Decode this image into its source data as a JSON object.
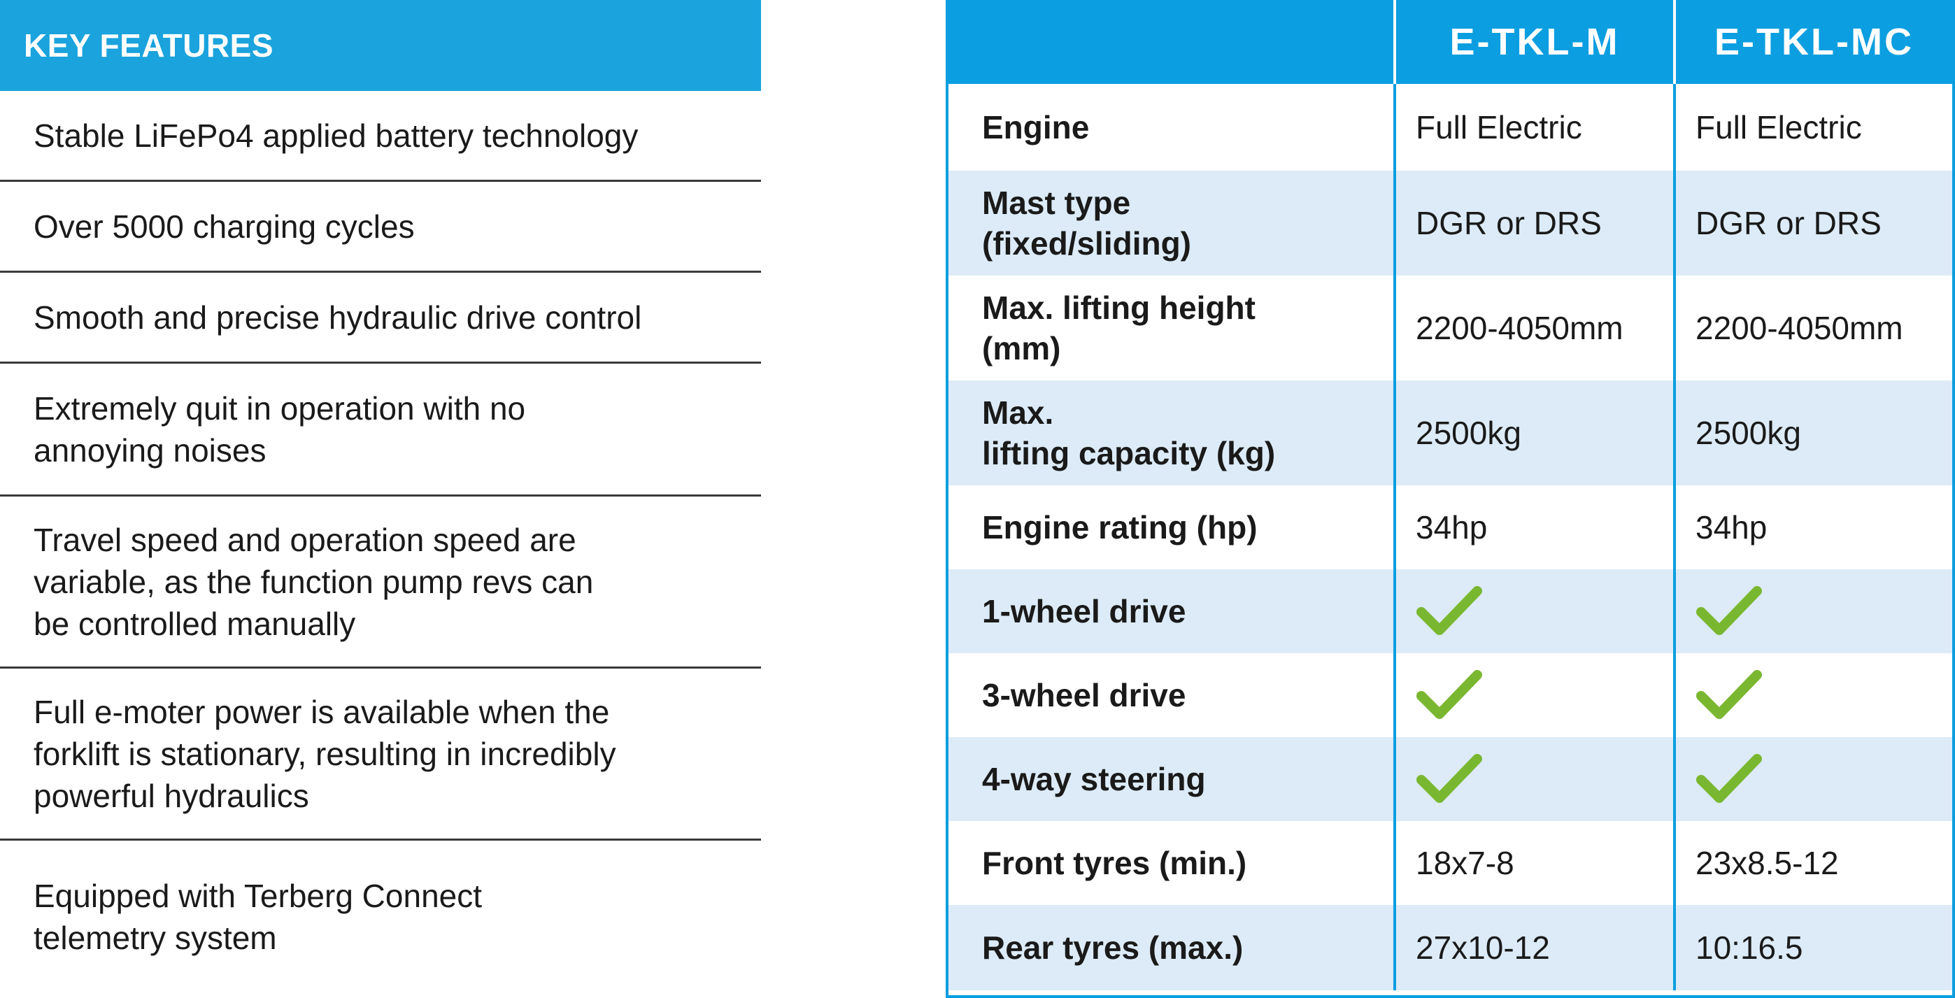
{
  "features": {
    "title": "KEY FEATURES",
    "items": [
      [
        "Stable LiFePo4 applied battery technology"
      ],
      [
        "Over 5000 charging cycles"
      ],
      [
        "Smooth and precise hydraulic drive control"
      ],
      [
        "Extremely quit in operation with no",
        "annoying noises"
      ],
      [
        "Travel speed and operation speed are",
        "variable, as the function pump revs can",
        "be controlled manually"
      ],
      [
        "Full e-moter power is available when the",
        "forklift is stationary, resulting in incredibly",
        "powerful hydraulics"
      ],
      [
        "Equipped with Terberg Connect",
        "telemetry system"
      ]
    ]
  },
  "spec": {
    "columns": [
      "",
      "E-TKL-M",
      "E-TKL-MC"
    ],
    "rows": [
      {
        "label": [
          "Engine"
        ],
        "m": "Full Electric",
        "mc": "Full Electric"
      },
      {
        "label": [
          "Mast type",
          "(fixed/sliding)"
        ],
        "m": "DGR or DRS",
        "mc": "DGR or DRS"
      },
      {
        "label": [
          "Max. lifting height",
          "(mm)"
        ],
        "m": "2200-4050mm",
        "mc": "2200-4050mm"
      },
      {
        "label": [
          "Max.",
          "lifting capacity (kg)"
        ],
        "m": "2500kg",
        "mc": "2500kg"
      },
      {
        "label": [
          "Engine rating (hp)"
        ],
        "m": "34hp",
        "mc": "34hp"
      },
      {
        "label": [
          "1-wheel drive"
        ],
        "m": "check",
        "mc": "check"
      },
      {
        "label": [
          "3-wheel drive"
        ],
        "m": "check",
        "mc": "check"
      },
      {
        "label": [
          "4-way steering"
        ],
        "m": "check",
        "mc": "check"
      },
      {
        "label": [
          "Front tyres (min.)"
        ],
        "m": "18x7-8",
        "mc": "23x8.5-12"
      },
      {
        "label": [
          "Rear tyres (max.)"
        ],
        "m": "27x10-12",
        "mc": "10:16.5"
      }
    ],
    "check_color": "#7ab731",
    "header_color": "#0b9ee0",
    "alt_row_color": "#dcebf7"
  }
}
